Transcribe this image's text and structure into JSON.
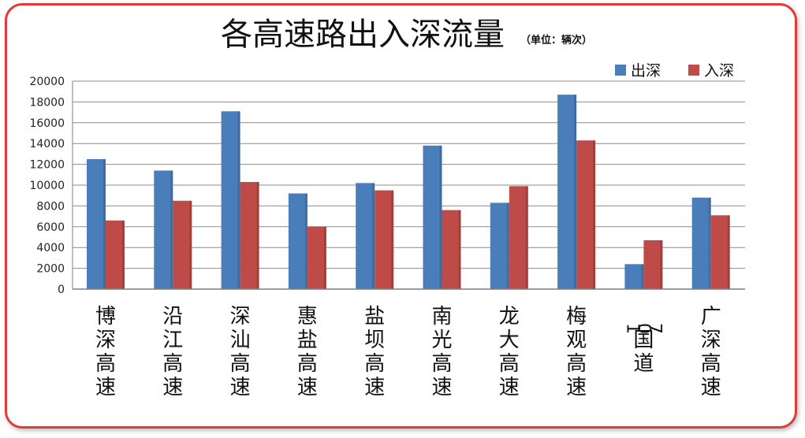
{
  "chart_data": {
    "type": "bar",
    "title": "各高速路出入深流量",
    "unit": "（单位：辆次）",
    "categories": [
      "博深高速",
      "沿江高速",
      "深汕高速",
      "惠盐高速",
      "盐坝高速",
      "南光高速",
      "龙大高速",
      "梅观高速",
      "107国道",
      "广深高速"
    ],
    "series": [
      {
        "name": "出深",
        "color": "#4a7ebb",
        "values": [
          12500,
          11400,
          17100,
          9200,
          10200,
          13800,
          8300,
          18700,
          2400,
          8800
        ]
      },
      {
        "name": "入深",
        "color": "#be4b48",
        "values": [
          6600,
          8500,
          10300,
          6000,
          9500,
          7600,
          9900,
          14300,
          4700,
          7100
        ]
      }
    ],
    "ylim": [
      0,
      20000
    ],
    "yticks": [
      0,
      2000,
      4000,
      6000,
      8000,
      10000,
      12000,
      14000,
      16000,
      18000,
      20000
    ],
    "grid": true,
    "legend_position": "top-right"
  }
}
